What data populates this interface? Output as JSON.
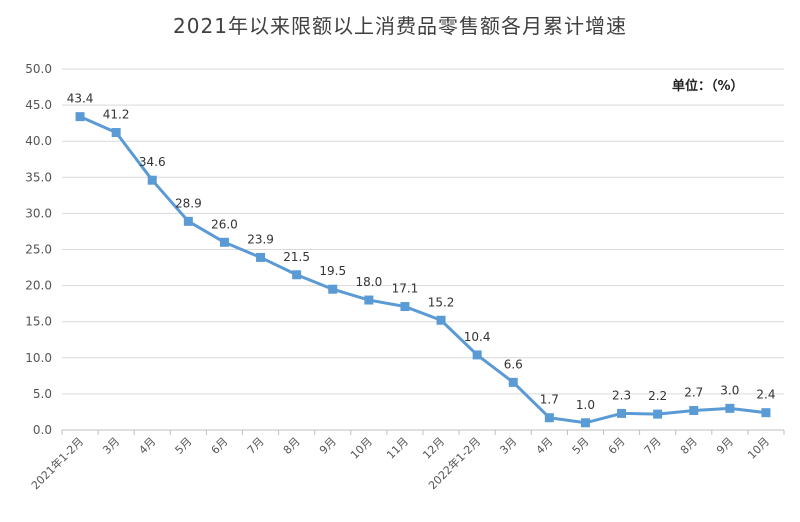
{
  "unit_label": "单位：（%）",
  "chart_data": {
    "type": "line",
    "title": "2021年以来限额以上消费品零售额各月累计增速",
    "categories": [
      "2021年1-2月",
      "3月",
      "4月",
      "5月",
      "6月",
      "7月",
      "8月",
      "9月",
      "10月",
      "11月",
      "12月",
      "2022年1-2月",
      "3月",
      "4月",
      "5月",
      "6月",
      "7月",
      "8月",
      "9月",
      "10月"
    ],
    "series": [
      {
        "values": [
          43.4,
          41.2,
          34.6,
          28.9,
          26.0,
          23.9,
          21.5,
          19.5,
          18.0,
          17.1,
          15.2,
          10.4,
          6.6,
          1.7,
          1.0,
          2.3,
          2.2,
          2.7,
          3.0,
          2.4
        ],
        "color": "#5B9BD5"
      }
    ],
    "ylim": [
      0,
      50
    ],
    "yticks": [
      "0.0",
      "5.0",
      "10.0",
      "15.0",
      "20.0",
      "25.0",
      "30.0",
      "35.0",
      "40.0",
      "45.0",
      "50.0"
    ],
    "xlabel": "",
    "ylabel": "",
    "grid": "horizontal",
    "legend": "none"
  }
}
